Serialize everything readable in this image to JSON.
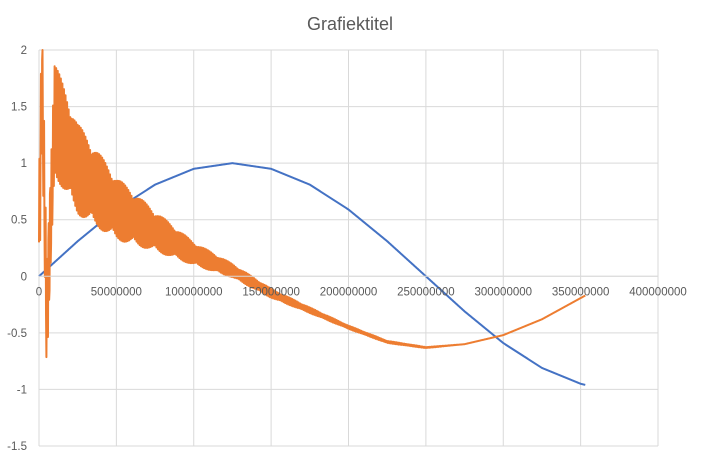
{
  "chart_data": {
    "type": "line",
    "title": "Grafiektitel",
    "xlabel": "",
    "ylabel": "",
    "xlim": [
      0,
      400000000
    ],
    "ylim": [
      -1.5,
      2
    ],
    "x_ticks": [
      0,
      50000000,
      100000000,
      150000000,
      200000000,
      250000000,
      300000000,
      350000000,
      400000000
    ],
    "x_tick_labels": [
      "0",
      "50000000",
      "100000000",
      "150000000",
      "200000000",
      "250000000",
      "300000000",
      "350000000",
      "400000000"
    ],
    "y_ticks": [
      2,
      1.5,
      1,
      0.5,
      0,
      -0.5,
      -1,
      -1.5
    ],
    "y_tick_labels": [
      "2",
      "1.5",
      "1",
      "0.5",
      "0",
      "-0.5",
      "-1",
      "-1.5"
    ],
    "x_axis_crosses_at": 0,
    "grid": true,
    "legend": "none",
    "series": [
      {
        "color": "#4472c4",
        "x": [
          0,
          25000000,
          50000000,
          75000000,
          100000000,
          125000000,
          150000000,
          175000000,
          200000000,
          225000000,
          250000000,
          275000000,
          300000000,
          325000000,
          350000000,
          353000000
        ],
        "y": [
          0.0,
          0.31,
          0.59,
          0.81,
          0.95,
          1.0,
          0.95,
          0.81,
          0.59,
          0.31,
          0.0,
          -0.31,
          -0.59,
          -0.81,
          -0.95,
          -0.96
        ]
      },
      {
        "color": "#ed7d31",
        "x": [
          0,
          2000000,
          5000000,
          10000000,
          25000000,
          50000000,
          75000000,
          100000000,
          125000000,
          150000000,
          175000000,
          200000000,
          225000000,
          250000000,
          275000000,
          300000000,
          325000000,
          353000000
        ],
        "y": [
          0.3,
          1.8,
          -0.4,
          1.4,
          0.95,
          0.6,
          0.4,
          0.2,
          0.05,
          -0.15,
          -0.3,
          -0.45,
          -0.58,
          -0.63,
          -0.6,
          -0.52,
          -0.38,
          -0.17
        ],
        "oscillation_envelope": [
          1.1,
          1.1,
          1.1,
          1.0,
          0.8,
          0.55,
          0.35,
          0.2,
          0.12,
          0.08,
          0.05,
          0.03,
          0.02,
          0.01,
          0.0,
          0.0,
          0.0,
          0.0
        ]
      }
    ]
  }
}
